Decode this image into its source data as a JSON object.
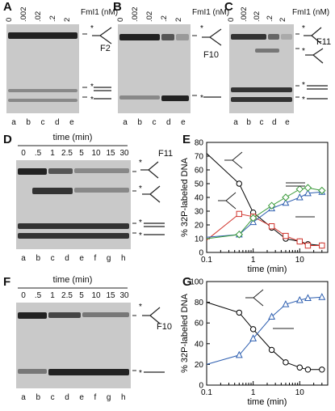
{
  "panels": {
    "A": {
      "letter": "A",
      "concentrations": [
        "0",
        ".002",
        ".02",
        ".2",
        "2"
      ],
      "unit": "FmI1 (nM)",
      "lanes": [
        "a",
        "b",
        "c",
        "d",
        "e"
      ],
      "dna_label": "F2"
    },
    "B": {
      "letter": "B",
      "concentrations": [
        "0",
        ".002",
        ".02",
        ".2",
        "2"
      ],
      "unit": "FmI1 (nM)",
      "lanes": [
        "a",
        "b",
        "c",
        "d",
        "e"
      ],
      "dna_label": "F10"
    },
    "C": {
      "letter": "C",
      "concentrations": [
        "0",
        ".002",
        ".02",
        ".2",
        "2"
      ],
      "unit": "FmI1 (nM)",
      "lanes": [
        "a",
        "b",
        "c",
        "d",
        "e"
      ],
      "dna_label": "F11"
    },
    "D": {
      "letter": "D",
      "time_title": "time (min)",
      "times": [
        "0",
        ".5",
        "1",
        "2.5",
        "5",
        "10",
        "15",
        "30"
      ],
      "lanes": [
        "a",
        "b",
        "c",
        "d",
        "e",
        "f",
        "g",
        "h"
      ],
      "dna_label": "F11"
    },
    "F": {
      "letter": "F",
      "time_title": "time (min)",
      "times": [
        "0",
        ".5",
        "1",
        "2.5",
        "5",
        "10",
        "15",
        "30"
      ],
      "lanes": [
        "a",
        "b",
        "c",
        "d",
        "e",
        "f",
        "g",
        "h"
      ],
      "dna_label": "F10"
    }
  },
  "chart_data": [
    {
      "panel": "E",
      "type": "line",
      "xlabel": "time (min)",
      "ylabel": "% 32P-labeled DNA",
      "xscale": "log",
      "xlim": [
        0.1,
        40
      ],
      "ylim": [
        0,
        80
      ],
      "xticks": [
        "0.1",
        "1",
        "10"
      ],
      "yticks": [
        "0",
        "10",
        "20",
        "30",
        "40",
        "50",
        "60",
        "70",
        "80"
      ],
      "series": [
        {
          "marker": "circle",
          "color": "#000000",
          "x": [
            0.1,
            0.5,
            1,
            2.5,
            5,
            10,
            15,
            30
          ],
          "y": [
            72,
            50,
            29,
            18,
            10,
            8,
            6,
            5
          ]
        },
        {
          "marker": "square",
          "color": "#d0342c",
          "x": [
            0.1,
            0.5,
            1,
            2.5,
            5,
            10,
            15,
            30
          ],
          "y": [
            9,
            28,
            26,
            19,
            12,
            8,
            5,
            5
          ]
        },
        {
          "marker": "triangle",
          "color": "#2e5fb0",
          "x": [
            0.1,
            0.5,
            1,
            2.5,
            5,
            10,
            15,
            30
          ],
          "y": [
            11,
            13,
            22,
            32,
            36,
            40,
            43,
            44
          ]
        },
        {
          "marker": "diamond",
          "color": "#3a9a3a",
          "x": [
            0.1,
            0.5,
            1,
            2.5,
            5,
            10,
            15,
            30
          ],
          "y": [
            10,
            13,
            25,
            34,
            40,
            46,
            47,
            45
          ]
        }
      ]
    },
    {
      "panel": "G",
      "type": "line",
      "xlabel": "time (min)",
      "ylabel": "% 32P-labeled DNA",
      "xscale": "log",
      "xlim": [
        0.1,
        40
      ],
      "ylim": [
        0,
        100
      ],
      "xticks": [
        "0.1",
        "1",
        "10"
      ],
      "yticks": [
        "0",
        "20",
        "40",
        "60",
        "80",
        "100"
      ],
      "series": [
        {
          "marker": "circle",
          "color": "#000000",
          "x": [
            0.1,
            0.5,
            1,
            2.5,
            5,
            10,
            15,
            30
          ],
          "y": [
            80,
            70,
            54,
            34,
            22,
            17,
            15,
            15
          ]
        },
        {
          "marker": "triangle",
          "color": "#2e5fb0",
          "x": [
            0.1,
            0.5,
            1,
            2.5,
            5,
            10,
            15,
            30
          ],
          "y": [
            20,
            29,
            45,
            66,
            78,
            82,
            84,
            85
          ]
        }
      ]
    }
  ]
}
